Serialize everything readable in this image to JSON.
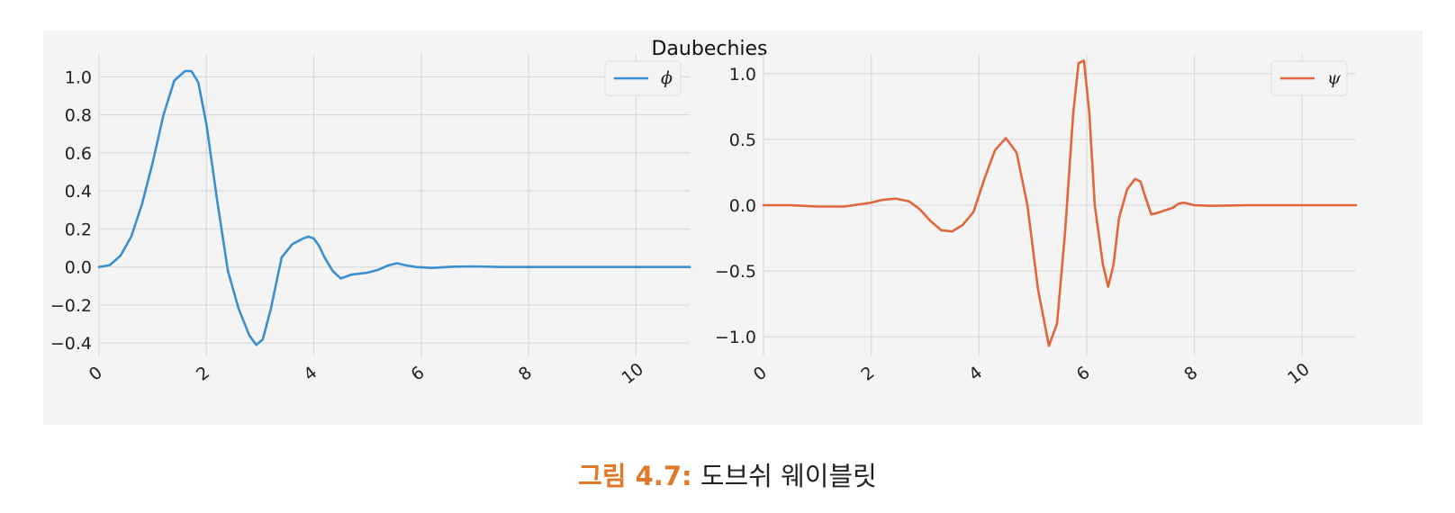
{
  "figure": {
    "suptitle": "Daubechies",
    "caption_label": "그림 4.7:",
    "caption_text": "도브쉬 웨이블릿"
  },
  "chart_data": [
    {
      "type": "line",
      "title": "",
      "xlabel": "",
      "ylabel": "",
      "xlim": [
        0,
        11
      ],
      "ylim": [
        -0.47,
        1.12
      ],
      "xticks": [
        0,
        2,
        4,
        6,
        8,
        10
      ],
      "yticks": [
        -0.4,
        -0.2,
        0.0,
        0.2,
        0.4,
        0.6,
        0.8,
        1.0
      ],
      "ytick_labels": [
        "−0.4",
        "−0.2",
        "0.0",
        "0.2",
        "0.4",
        "0.6",
        "0.8",
        "1.0"
      ],
      "grid": true,
      "legend_position": "top-right",
      "series": [
        {
          "name": "ϕ",
          "color": "#3a8fd0",
          "x": [
            0,
            0.2,
            0.4,
            0.6,
            0.8,
            1.0,
            1.2,
            1.4,
            1.6,
            1.72,
            1.85,
            2.0,
            2.2,
            2.4,
            2.6,
            2.8,
            2.93,
            3.05,
            3.2,
            3.4,
            3.6,
            3.8,
            3.9,
            4.0,
            4.1,
            4.2,
            4.35,
            4.5,
            4.7,
            5.0,
            5.2,
            5.4,
            5.55,
            5.7,
            5.9,
            6.2,
            6.6,
            7.0,
            7.5,
            8.0,
            9.0,
            10.0,
            11.0
          ],
          "y": [
            0.0,
            0.01,
            0.06,
            0.16,
            0.33,
            0.55,
            0.8,
            0.98,
            1.03,
            1.03,
            0.97,
            0.75,
            0.35,
            -0.02,
            -0.22,
            -0.36,
            -0.41,
            -0.38,
            -0.22,
            0.05,
            0.12,
            0.15,
            0.16,
            0.15,
            0.11,
            0.05,
            -0.02,
            -0.06,
            -0.04,
            -0.03,
            -0.015,
            0.01,
            0.02,
            0.01,
            0.0,
            -0.005,
            0.002,
            0.003,
            0.0,
            0.0,
            0.0,
            0.0,
            0.0
          ]
        }
      ]
    },
    {
      "type": "line",
      "title": "",
      "xlabel": "",
      "ylabel": "",
      "xlim": [
        0,
        11
      ],
      "ylim": [
        -1.15,
        1.15
      ],
      "xticks": [
        0,
        2,
        4,
        6,
        8,
        10
      ],
      "yticks": [
        -1.0,
        -0.5,
        0.0,
        0.5,
        1.0
      ],
      "ytick_labels": [
        "−1.0",
        "−0.5",
        "0.0",
        "0.5",
        "1.0"
      ],
      "grid": true,
      "legend_position": "top-right",
      "series": [
        {
          "name": "ψ",
          "color": "#e0663c",
          "x": [
            0,
            0.5,
            1.0,
            1.5,
            2.0,
            2.2,
            2.45,
            2.7,
            2.9,
            3.1,
            3.3,
            3.5,
            3.7,
            3.9,
            4.1,
            4.3,
            4.5,
            4.7,
            4.9,
            5.1,
            5.3,
            5.45,
            5.6,
            5.75,
            5.85,
            5.95,
            6.05,
            6.15,
            6.3,
            6.4,
            6.5,
            6.6,
            6.75,
            6.9,
            7.0,
            7.1,
            7.2,
            7.3,
            7.45,
            7.6,
            7.7,
            7.8,
            8.0,
            8.3,
            9.0,
            10.0,
            11.0
          ],
          "y": [
            0.0,
            0.0,
            -0.01,
            -0.01,
            0.02,
            0.04,
            0.05,
            0.03,
            -0.03,
            -0.12,
            -0.19,
            -0.2,
            -0.15,
            -0.05,
            0.2,
            0.42,
            0.51,
            0.4,
            0.0,
            -0.65,
            -1.07,
            -0.9,
            -0.2,
            0.7,
            1.08,
            1.1,
            0.7,
            0.0,
            -0.45,
            -0.62,
            -0.45,
            -0.1,
            0.12,
            0.2,
            0.18,
            0.05,
            -0.07,
            -0.06,
            -0.04,
            -0.02,
            0.01,
            0.02,
            0.0,
            -0.005,
            0.0,
            0.0,
            0.0
          ]
        }
      ]
    }
  ]
}
